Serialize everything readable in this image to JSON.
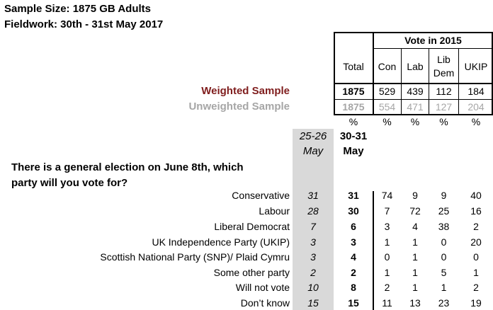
{
  "header": {
    "sample_size": "Sample Size: 1875 GB Adults",
    "fieldwork": "Fieldwork: 30th - 31st May 2017"
  },
  "table_header": {
    "group_label": "Vote in 2015",
    "total": "Total",
    "con": "Con",
    "lab": "Lab",
    "libdem_line1": "Lib",
    "libdem_line2": "Dem",
    "ukip": "UKIP"
  },
  "weighted": {
    "label": "Weighted Sample",
    "values": [
      "1875",
      "529",
      "439",
      "112",
      "184"
    ],
    "color": "#7f1d1d"
  },
  "unweighted": {
    "label": "Unweighted Sample",
    "values": [
      "1875",
      "554",
      "471",
      "127",
      "204"
    ],
    "color": "#a6a6a6"
  },
  "percent_symbol": "%",
  "periods": {
    "prev_line1": "25-26",
    "prev_line2": "May",
    "cur_line1": "30-31",
    "cur_line2": "May"
  },
  "question": {
    "line1": "There is a general election on June 8th, which",
    "line2": "party will you vote for?"
  },
  "rows": [
    {
      "label": "Conservative",
      "prev": "31",
      "total": "31",
      "con": "74",
      "lab": "9",
      "ld": "9",
      "ukip": "40"
    },
    {
      "label": "Labour",
      "prev": "28",
      "total": "30",
      "con": "7",
      "lab": "72",
      "ld": "25",
      "ukip": "16"
    },
    {
      "label": "Liberal Democrat",
      "prev": "7",
      "total": "6",
      "con": "3",
      "lab": "4",
      "ld": "38",
      "ukip": "2"
    },
    {
      "label": "UK Independence Party (UKIP)",
      "prev": "3",
      "total": "3",
      "con": "1",
      "lab": "1",
      "ld": "0",
      "ukip": "20"
    },
    {
      "label": "Scottish National Party (SNP)/ Plaid Cymru",
      "prev": "3",
      "total": "4",
      "con": "0",
      "lab": "1",
      "ld": "0",
      "ukip": "0"
    },
    {
      "label": "Some other party",
      "prev": "2",
      "total": "2",
      "con": "1",
      "lab": "1",
      "ld": "5",
      "ukip": "1"
    },
    {
      "label": "Will not vote",
      "prev": "10",
      "total": "8",
      "con": "2",
      "lab": "1",
      "ld": "1",
      "ukip": "2"
    },
    {
      "label": "Don’t know",
      "prev": "15",
      "total": "15",
      "con": "11",
      "lab": "13",
      "ld": "23",
      "ukip": "19"
    }
  ]
}
